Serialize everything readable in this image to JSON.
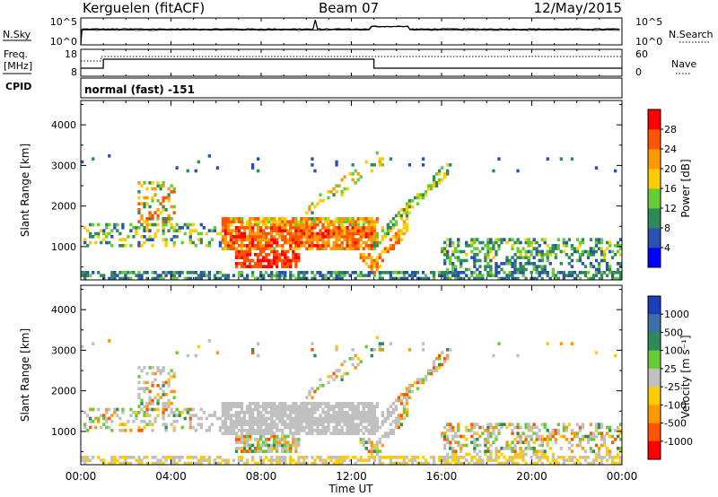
{
  "header": {
    "station": "Kerguelen (fitACF)",
    "beam": "Beam 07",
    "date": "12/May/2015",
    "mode": "normal (fast) -151"
  },
  "side_labels": {
    "nsky": "N.Sky",
    "freq_line1": "Freq.",
    "freq_line2": "[MHz]",
    "cpid": "CPID",
    "nsearch": "N.Search",
    "nave": "Nave"
  },
  "noise_axis": {
    "left_ticks": [
      "10^5",
      "10^0"
    ],
    "right_ticks": [
      "10^5",
      "10^0"
    ]
  },
  "freq_axis": {
    "left_ticks": [
      "18",
      "8"
    ],
    "right_ticks": [
      "60",
      "0"
    ]
  },
  "chart_data": [
    {
      "type": "heatmap",
      "name": "power",
      "xlabel": "",
      "ylabel": "Slant Range [km]",
      "x_ticks": [
        "00:00",
        "04:00",
        "08:00",
        "12:00",
        "16:00",
        "20:00",
        "00:00"
      ],
      "xlim_hours": [
        0,
        24
      ],
      "ylim": [
        180,
        4600
      ],
      "y_ticks": [
        1000,
        2000,
        3000,
        4000
      ],
      "colorbar": {
        "label": "Power [dB]",
        "ticks": [
          "4",
          "8",
          "12",
          "16",
          "20",
          "24",
          "28"
        ],
        "colors": [
          "#0000ff",
          "#2a50b0",
          "#2e8b57",
          "#66cc33",
          "#ffcc00",
          "#ff9900",
          "#ff5500",
          "#ff0000"
        ]
      }
    },
    {
      "type": "heatmap",
      "name": "velocity",
      "xlabel": "Time UT",
      "ylabel": "Slant Range [km]",
      "x_ticks": [
        "00:00",
        "04:00",
        "08:00",
        "12:00",
        "16:00",
        "20:00",
        "00:00"
      ],
      "xlim_hours": [
        0,
        24
      ],
      "ylim": [
        180,
        4600
      ],
      "y_ticks": [
        1000,
        2000,
        3000,
        4000
      ],
      "colorbar": {
        "label": "Velocity [m s⁻¹]",
        "ticks": [
          "1000",
          "500",
          "100",
          "25",
          "-25",
          "-100",
          "-500",
          "-1000"
        ],
        "colors": [
          "#1a3fb8",
          "#3a6fa8",
          "#2e8b57",
          "#66cc33",
          "#c0c0c0",
          "#ffcc00",
          "#ff9900",
          "#ff5500",
          "#ff0000"
        ]
      }
    }
  ]
}
